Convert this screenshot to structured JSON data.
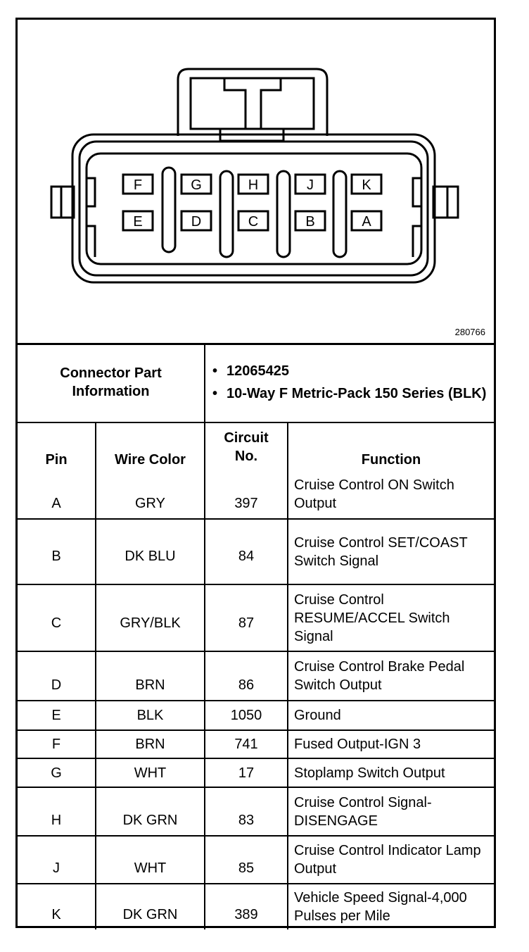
{
  "figure": {
    "number": "280766",
    "pins_top_row": [
      "F",
      "G",
      "H",
      "J",
      "K"
    ],
    "pins_bottom_row": [
      "E",
      "D",
      "C",
      "B",
      "A"
    ]
  },
  "connector_info": {
    "label": "Connector Part Information",
    "items": [
      "12065425",
      "10-Way F Metric-Pack 150 Series (BLK)"
    ]
  },
  "table": {
    "headers": {
      "pin": "Pin",
      "wire_color": "Wire Color",
      "circuit": "Circuit No.",
      "function": "Function"
    },
    "rows": [
      {
        "pin": "A",
        "wire_color": "GRY",
        "circuit": "397",
        "function": "Cruise Control ON Switch Output"
      },
      {
        "pin": "B",
        "wire_color": "DK BLU",
        "circuit": "84",
        "function": "Cruise Control SET/COAST Switch Signal"
      },
      {
        "pin": "C",
        "wire_color": "GRY/BLK",
        "circuit": "87",
        "function": "Cruise Control RESUME/ACCEL Switch Signal"
      },
      {
        "pin": "D",
        "wire_color": "BRN",
        "circuit": "86",
        "function": "Cruise Control Brake Pedal Switch Output"
      },
      {
        "pin": "E",
        "wire_color": "BLK",
        "circuit": "1050",
        "function": "Ground"
      },
      {
        "pin": "F",
        "wire_color": "BRN",
        "circuit": "741",
        "function": "Fused Output-IGN 3"
      },
      {
        "pin": "G",
        "wire_color": "WHT",
        "circuit": "17",
        "function": "Stoplamp Switch Output"
      },
      {
        "pin": "H",
        "wire_color": "DK GRN",
        "circuit": "83",
        "function": "Cruise Control Signal-DISENGAGE"
      },
      {
        "pin": "J",
        "wire_color": "WHT",
        "circuit": "85",
        "function": "Cruise Control Indicator Lamp Output"
      },
      {
        "pin": "K",
        "wire_color": "DK GRN",
        "circuit": "389",
        "function": "Vehicle Speed Signal-4,000 Pulses per Mile"
      }
    ]
  }
}
